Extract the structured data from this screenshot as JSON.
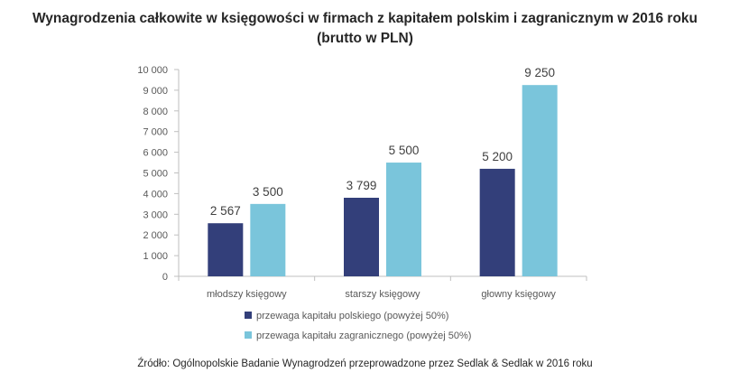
{
  "chart_data": {
    "type": "bar",
    "title": "Wynagrodzenia całkowite w księgowości w firmach z kapitałem polskim i zagranicznym w 2016 roku",
    "subtitle": "(brutto w PLN)",
    "categories": [
      "młodszy księgowy",
      "starszy księgowy",
      "głowny księgowy"
    ],
    "series": [
      {
        "name": "przewaga kapitału polskiego (powyżej 50%)",
        "values": [
          2567,
          3799,
          5200
        ],
        "labels": [
          "2 567",
          "3 799",
          "5 200"
        ],
        "color": "#333f7a"
      },
      {
        "name": "przewaga kapitału zagranicznego (powyżej 50%)",
        "values": [
          3500,
          5500,
          9250
        ],
        "labels": [
          "3 500",
          "5 500",
          "9 250"
        ],
        "color": "#7ac5db"
      }
    ],
    "ylim": [
      0,
      10000
    ],
    "yticks": [
      0,
      1000,
      2000,
      3000,
      4000,
      5000,
      6000,
      7000,
      8000,
      9000,
      10000
    ],
    "ytick_labels": [
      "0",
      "1 000",
      "2 000",
      "3 000",
      "4 000",
      "5 000",
      "6 000",
      "7 000",
      "8 000",
      "9 000",
      "10 000"
    ],
    "grid": false,
    "legend_position": "bottom"
  },
  "source": "Źródło: Ogólnopolskie Badanie Wynagrodzeń przeprowadzone przez Sedlak & Sedlak w 2016 roku"
}
